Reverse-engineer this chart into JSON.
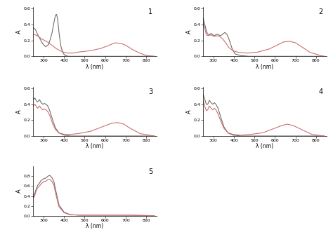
{
  "line_color_dark": "#666666",
  "line_color_red": "#cc6666",
  "xlabel": "λ (nm)",
  "ylabel": "A",
  "xlim": [
    250,
    850
  ],
  "subplots": [
    {
      "label": "1",
      "ylim": [
        0.0,
        0.62
      ],
      "yticks": [
        0.0,
        0.2,
        0.4,
        0.6
      ],
      "dark": {
        "x": [
          250,
          260,
          270,
          278,
          285,
          295,
          310,
          325,
          340,
          350,
          358,
          363,
          368,
          375,
          385,
          395,
          405,
          420,
          450,
          500,
          600,
          700,
          840
        ],
        "y": [
          0.36,
          0.34,
          0.28,
          0.24,
          0.21,
          0.16,
          0.12,
          0.15,
          0.28,
          0.42,
          0.52,
          0.53,
          0.48,
          0.3,
          0.12,
          0.04,
          0.01,
          0.0,
          0.0,
          0.0,
          0.0,
          0.0,
          0.0
        ]
      },
      "red": {
        "x": [
          250,
          260,
          270,
          280,
          290,
          305,
          320,
          340,
          360,
          380,
          400,
          420,
          440,
          460,
          490,
          530,
          580,
          620,
          650,
          680,
          700,
          730,
          760,
          800,
          840
        ],
        "y": [
          0.28,
          0.27,
          0.26,
          0.24,
          0.22,
          0.2,
          0.18,
          0.14,
          0.1,
          0.07,
          0.05,
          0.04,
          0.04,
          0.05,
          0.06,
          0.07,
          0.1,
          0.14,
          0.17,
          0.16,
          0.14,
          0.09,
          0.05,
          0.01,
          0.0
        ]
      }
    },
    {
      "label": "2",
      "ylim": [
        0.0,
        0.62
      ],
      "yticks": [
        0.0,
        0.2,
        0.4,
        0.6
      ],
      "dark": {
        "x": [
          250,
          258,
          265,
          272,
          280,
          288,
          297,
          305,
          315,
          325,
          335,
          345,
          355,
          365,
          375,
          390,
          405,
          430,
          470,
          530,
          600,
          700,
          840
        ],
        "y": [
          0.48,
          0.4,
          0.32,
          0.28,
          0.27,
          0.29,
          0.27,
          0.26,
          0.28,
          0.27,
          0.26,
          0.28,
          0.3,
          0.28,
          0.22,
          0.1,
          0.03,
          0.01,
          0.0,
          0.0,
          0.0,
          0.0,
          0.0
        ]
      },
      "red": {
        "x": [
          250,
          258,
          265,
          275,
          285,
          295,
          305,
          318,
          330,
          345,
          360,
          375,
          395,
          420,
          460,
          510,
          570,
          610,
          640,
          670,
          700,
          730,
          770,
          820,
          840
        ],
        "y": [
          0.42,
          0.35,
          0.27,
          0.26,
          0.27,
          0.26,
          0.25,
          0.26,
          0.25,
          0.22,
          0.17,
          0.11,
          0.07,
          0.05,
          0.04,
          0.05,
          0.09,
          0.14,
          0.18,
          0.19,
          0.17,
          0.12,
          0.05,
          0.01,
          0.0
        ]
      }
    },
    {
      "label": "3",
      "ylim": [
        0.0,
        0.62
      ],
      "yticks": [
        0.0,
        0.2,
        0.4,
        0.6
      ],
      "dark": {
        "x": [
          250,
          258,
          265,
          272,
          280,
          288,
          296,
          304,
          312,
          320,
          330,
          342,
          358,
          375,
          400,
          430,
          470,
          550,
          700,
          840
        ],
        "y": [
          0.46,
          0.48,
          0.44,
          0.43,
          0.46,
          0.42,
          0.4,
          0.41,
          0.4,
          0.38,
          0.32,
          0.22,
          0.1,
          0.04,
          0.01,
          0.0,
          0.0,
          0.0,
          0.0,
          0.0
        ]
      },
      "red": {
        "x": [
          250,
          258,
          265,
          272,
          280,
          288,
          296,
          304,
          312,
          320,
          330,
          342,
          358,
          375,
          400,
          430,
          470,
          530,
          590,
          630,
          660,
          690,
          720,
          770,
          840
        ],
        "y": [
          0.38,
          0.4,
          0.37,
          0.35,
          0.38,
          0.35,
          0.33,
          0.34,
          0.33,
          0.31,
          0.26,
          0.17,
          0.08,
          0.04,
          0.02,
          0.02,
          0.03,
          0.06,
          0.12,
          0.16,
          0.17,
          0.15,
          0.1,
          0.03,
          0.0
        ]
      }
    },
    {
      "label": "4",
      "ylim": [
        0.0,
        0.62
      ],
      "yticks": [
        0.0,
        0.2,
        0.4,
        0.6
      ],
      "dark": {
        "x": [
          250,
          258,
          265,
          272,
          280,
          288,
          296,
          304,
          312,
          322,
          335,
          350,
          370,
          395,
          430,
          480,
          550,
          700,
          840
        ],
        "y": [
          0.52,
          0.46,
          0.4,
          0.4,
          0.45,
          0.42,
          0.4,
          0.42,
          0.4,
          0.35,
          0.24,
          0.12,
          0.04,
          0.01,
          0.0,
          0.0,
          0.0,
          0.0,
          0.0
        ]
      },
      "red": {
        "x": [
          250,
          258,
          265,
          272,
          280,
          288,
          296,
          304,
          312,
          322,
          335,
          350,
          370,
          395,
          430,
          480,
          540,
          590,
          630,
          660,
          690,
          730,
          780,
          840
        ],
        "y": [
          0.44,
          0.37,
          0.32,
          0.33,
          0.38,
          0.35,
          0.33,
          0.35,
          0.33,
          0.28,
          0.19,
          0.1,
          0.04,
          0.02,
          0.01,
          0.02,
          0.04,
          0.09,
          0.13,
          0.15,
          0.13,
          0.08,
          0.02,
          0.0
        ]
      }
    },
    {
      "label": "5",
      "ylim": [
        0.0,
        1.0
      ],
      "yticks": [
        0.0,
        0.2,
        0.4,
        0.6,
        0.8
      ],
      "dark": {
        "x": [
          250,
          258,
          265,
          272,
          280,
          288,
          295,
          303,
          310,
          320,
          330,
          340,
          350,
          360,
          375,
          400,
          430,
          470,
          530,
          600,
          700,
          840
        ],
        "y": [
          0.38,
          0.46,
          0.56,
          0.62,
          0.66,
          0.72,
          0.73,
          0.76,
          0.76,
          0.8,
          0.82,
          0.78,
          0.7,
          0.5,
          0.22,
          0.07,
          0.02,
          0.01,
          0.01,
          0.01,
          0.01,
          0.0
        ]
      },
      "red": {
        "x": [
          250,
          258,
          265,
          272,
          280,
          288,
          295,
          303,
          310,
          320,
          330,
          340,
          350,
          360,
          375,
          400,
          430,
          470,
          530,
          600,
          700,
          840
        ],
        "y": [
          0.35,
          0.42,
          0.52,
          0.57,
          0.6,
          0.65,
          0.67,
          0.7,
          0.7,
          0.73,
          0.74,
          0.7,
          0.62,
          0.43,
          0.18,
          0.06,
          0.02,
          0.01,
          0.01,
          0.01,
          0.01,
          0.0
        ]
      }
    }
  ]
}
